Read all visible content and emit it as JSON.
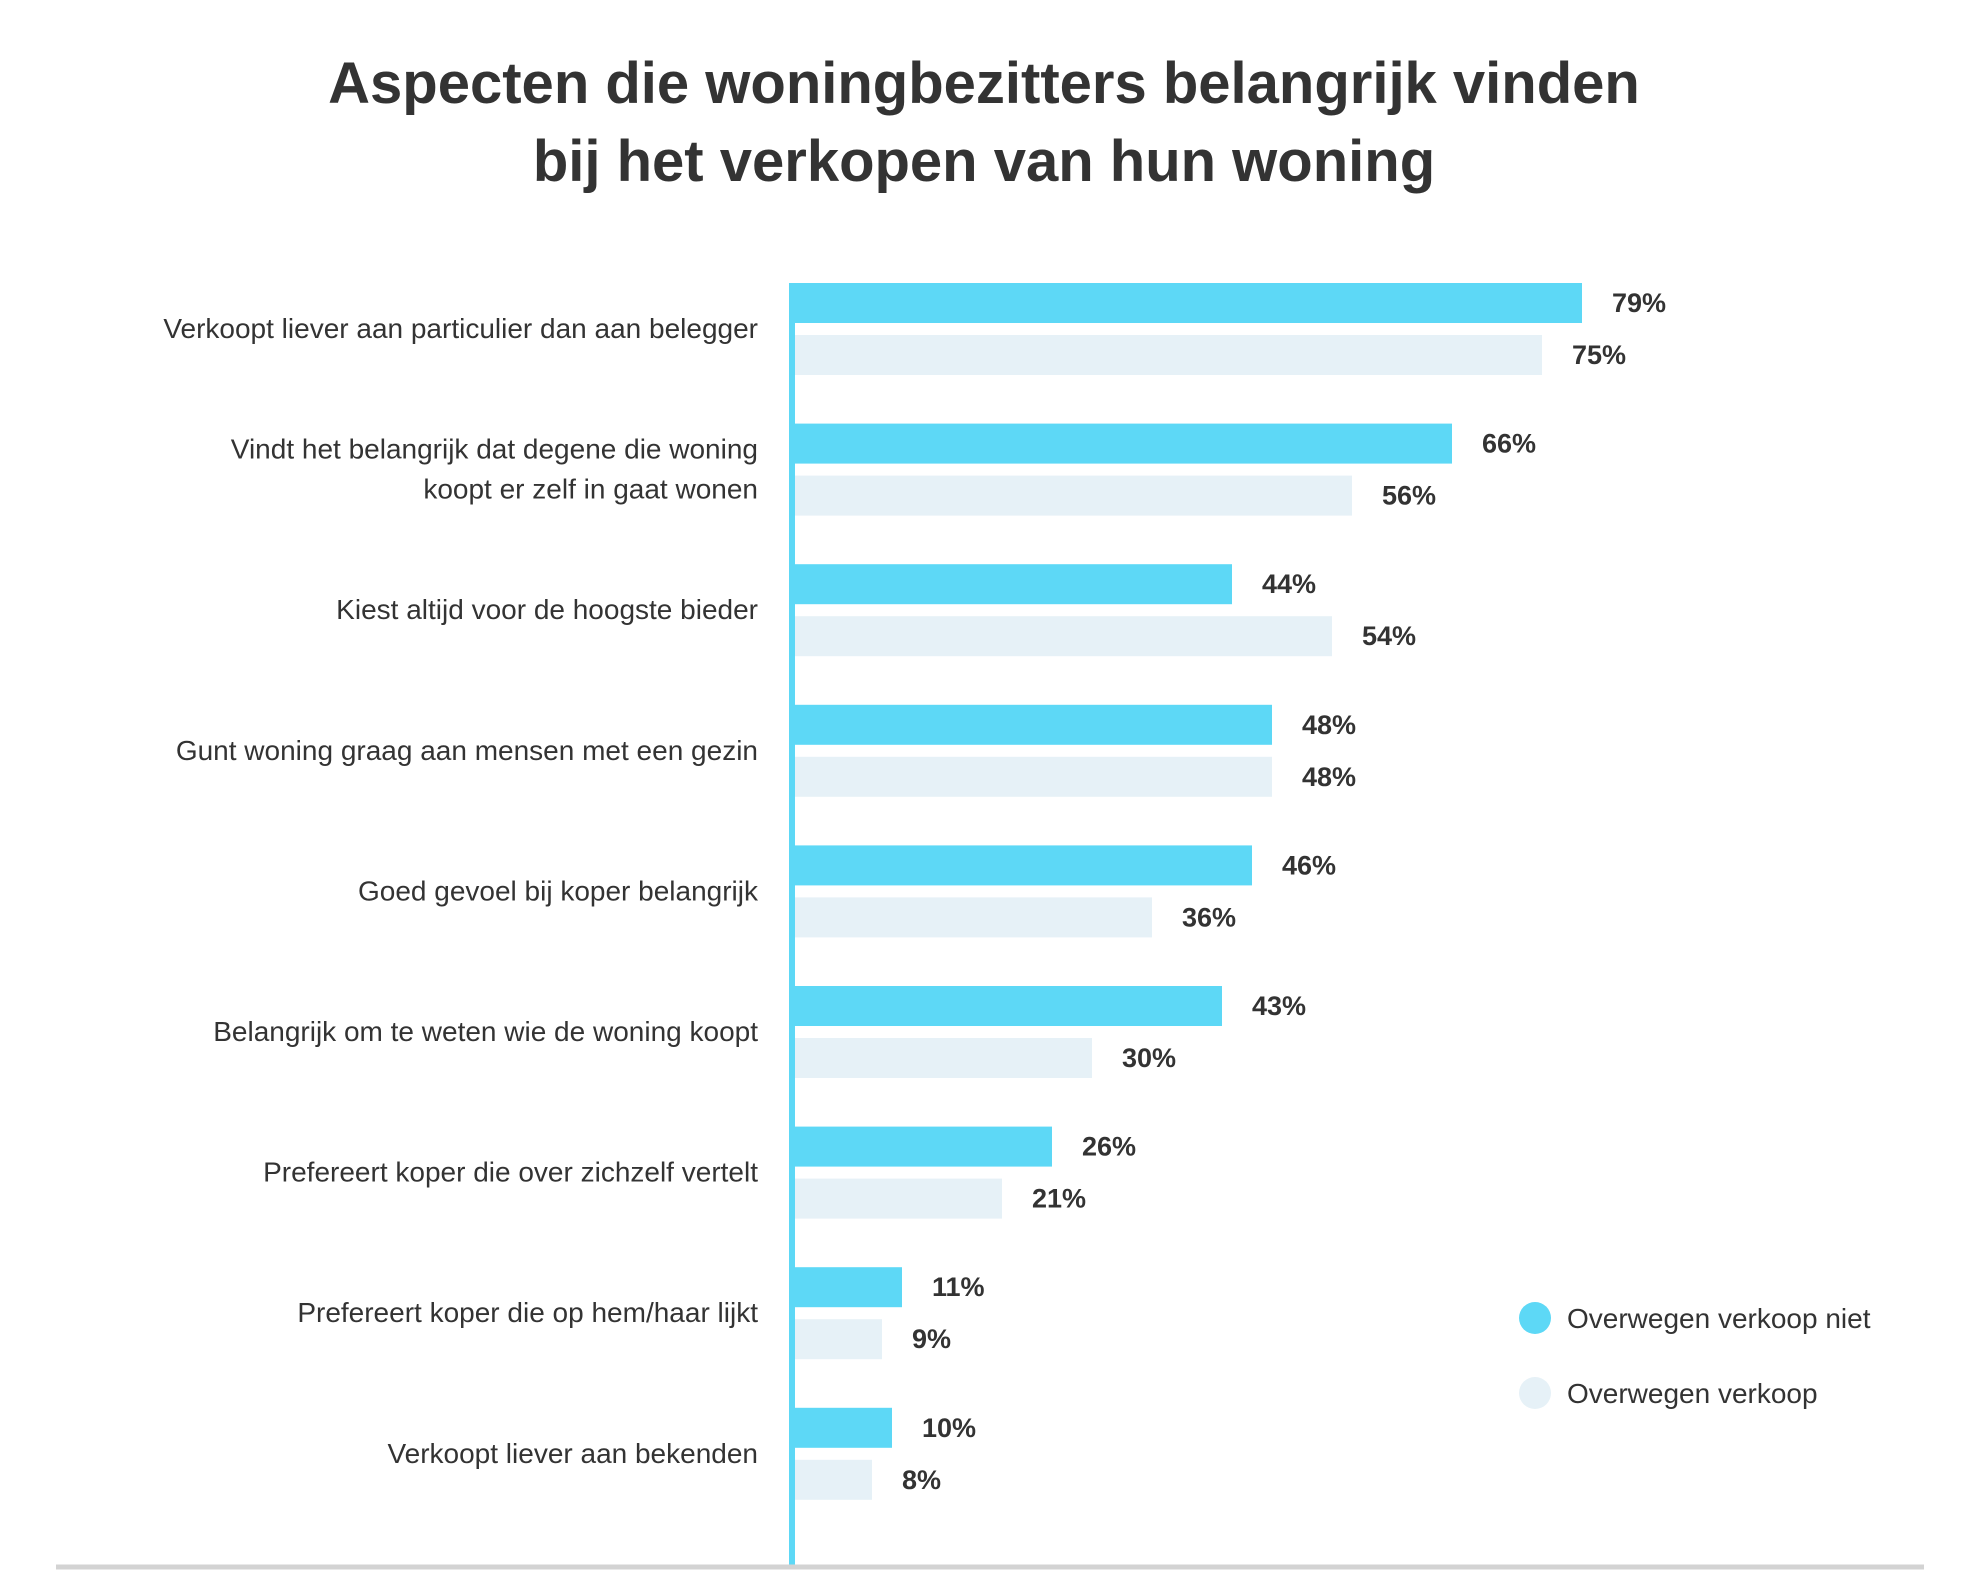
{
  "title_lines": [
    "Aspecten die woningbezitters belangrijk vinden",
    "bij het verkopen van hun woning"
  ],
  "colors": {
    "series_0": "#5dd8f6",
    "series_1": "#e6f1f7",
    "axis": "#5dd8f6",
    "baseline": "#d3d3d3",
    "text": "#333333"
  },
  "chart_data": {
    "type": "bar",
    "orientation": "horizontal",
    "title": "Aspecten die woningbezitters belangrijk vinden bij het verkopen van hun woning",
    "categories": [
      [
        "Verkoopt liever aan particulier dan aan belegger"
      ],
      [
        "Vindt het belangrijk dat degene die woning",
        "koopt er zelf in gaat wonen"
      ],
      [
        "Kiest altijd voor de hoogste bieder"
      ],
      [
        "Gunt woning graag aan mensen met een gezin"
      ],
      [
        "Goed gevoel bij koper belangrijk"
      ],
      [
        "Belangrijk om te weten wie de woning koopt"
      ],
      [
        "Prefereert koper die over zichzelf vertelt"
      ],
      [
        "Prefereert koper die op hem/haar lijkt"
      ],
      [
        "Verkoopt liever aan bekenden"
      ]
    ],
    "series": [
      {
        "name": "Overwegen verkoop niet",
        "values": [
          79,
          66,
          44,
          48,
          46,
          43,
          26,
          11,
          10
        ],
        "labels": [
          "79%",
          "66%",
          "44%",
          "48%",
          "46%",
          "43%",
          "26%",
          "11%",
          "10%"
        ]
      },
      {
        "name": "Overwegen verkoop",
        "values": [
          75,
          56,
          54,
          48,
          36,
          30,
          21,
          9,
          8
        ],
        "labels": [
          "75%",
          "56%",
          "54%",
          "48%",
          "36%",
          "30%",
          "21%",
          "9%",
          "8%"
        ]
      }
    ],
    "value_unit": "%",
    "xlim": [
      0,
      100
    ],
    "grid": false,
    "legend_position": "bottom-right"
  }
}
